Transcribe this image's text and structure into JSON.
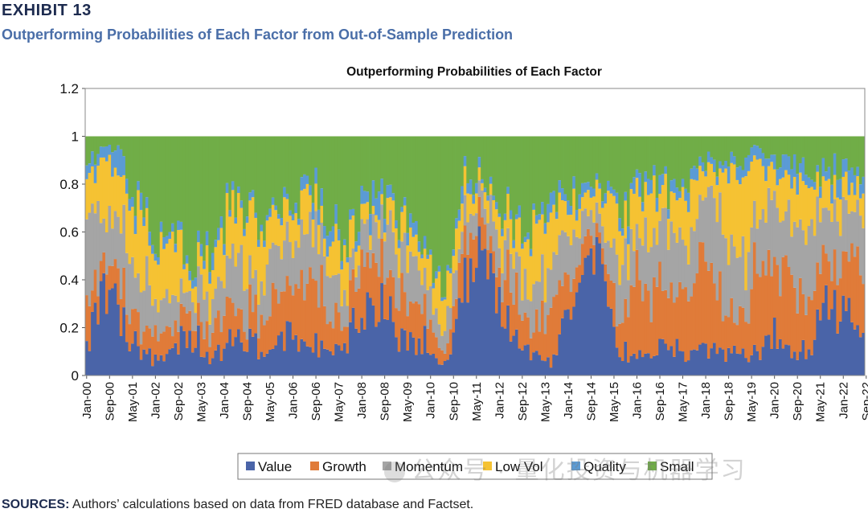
{
  "exhibit_label": "EXHIBIT 13",
  "subtitle": "Outperforming Probabilities of Each Factor from Out-of-Sample Prediction",
  "sources_label": "SOURCES:",
  "sources_text": "Authors’ calculations based on data from FRED database and Factset.",
  "watermark": "公众号 · 量化投资与机器学习",
  "chart_data": {
    "type": "stacked_bar",
    "title": "Outperforming Probabilities of Each Factor",
    "ylim": [
      0,
      1.2
    ],
    "yticks": [
      "0",
      "0.2",
      "0.4",
      "0.6",
      "0.8",
      "1",
      "1.2"
    ],
    "ytick_values": [
      0,
      0.2,
      0.4,
      0.6,
      0.8,
      1.0,
      1.2
    ],
    "xtick_labels": [
      "Jan-00",
      "Sep-00",
      "May-01",
      "Jan-02",
      "Sep-02",
      "May-03",
      "Jan-04",
      "Sep-04",
      "May-05",
      "Jan-06",
      "Sep-06",
      "May-07",
      "Jan-08",
      "Sep-08",
      "May-09",
      "Jan-10",
      "Sep-10",
      "May-11",
      "Jan-12",
      "Sep-12",
      "May-13",
      "Jan-14",
      "Sep-14",
      "May-15",
      "Jan-16",
      "Sep-16",
      "May-17",
      "Jan-18",
      "Sep-18",
      "May-19",
      "Jan-20",
      "Sep-20",
      "May-21",
      "Jan-22",
      "Sep-22"
    ],
    "legend_position": "bottom",
    "colors": {
      "Value": "#4a64a8",
      "Growth": "#e07b39",
      "Momentum": "#a5a5a5",
      "Low Vol": "#f5c233",
      "Quality": "#5b9bd5",
      "Small": "#70ad47"
    },
    "series_names": [
      "Value",
      "Growth",
      "Momentum",
      "Low Vol",
      "Quality",
      "Small"
    ],
    "anchor_months": [
      0,
      6,
      12,
      18,
      24,
      30,
      36,
      42,
      48,
      54,
      60,
      66,
      72,
      78,
      84,
      90,
      96,
      102,
      108,
      114,
      120,
      126,
      132,
      138,
      144,
      150,
      156,
      162,
      168,
      174,
      180,
      186,
      192,
      198,
      204,
      210,
      216,
      222,
      228,
      234,
      240,
      246,
      252,
      258,
      264,
      271
    ],
    "series": [
      {
        "name": "Value",
        "values": [
          0.12,
          0.4,
          0.25,
          0.1,
          0.08,
          0.12,
          0.15,
          0.08,
          0.1,
          0.18,
          0.12,
          0.1,
          0.22,
          0.15,
          0.08,
          0.12,
          0.25,
          0.3,
          0.18,
          0.15,
          0.08,
          0.05,
          0.45,
          0.55,
          0.3,
          0.15,
          0.08,
          0.05,
          0.3,
          0.45,
          0.55,
          0.1,
          0.05,
          0.1,
          0.12,
          0.08,
          0.12,
          0.1,
          0.08,
          0.1,
          0.2,
          0.08,
          0.1,
          0.35,
          0.25,
          0.22
        ]
      },
      {
        "name": "Growth",
        "values": [
          0.15,
          0.1,
          0.15,
          0.1,
          0.12,
          0.08,
          0.12,
          0.1,
          0.15,
          0.1,
          0.12,
          0.2,
          0.15,
          0.3,
          0.2,
          0.08,
          0.2,
          0.2,
          0.15,
          0.2,
          0.1,
          0.05,
          0.15,
          0.1,
          0.15,
          0.2,
          0.1,
          0.25,
          0.15,
          0.1,
          0.05,
          0.15,
          0.35,
          0.25,
          0.2,
          0.3,
          0.4,
          0.2,
          0.15,
          0.35,
          0.3,
          0.3,
          0.2,
          0.15,
          0.25,
          0.3
        ]
      },
      {
        "name": "Momentum",
        "values": [
          0.4,
          0.2,
          0.25,
          0.2,
          0.15,
          0.12,
          0.1,
          0.15,
          0.18,
          0.2,
          0.15,
          0.25,
          0.15,
          0.2,
          0.25,
          0.1,
          0.1,
          0.15,
          0.2,
          0.15,
          0.1,
          0.1,
          0.1,
          0.1,
          0.15,
          0.15,
          0.15,
          0.2,
          0.15,
          0.1,
          0.1,
          0.2,
          0.2,
          0.25,
          0.25,
          0.2,
          0.25,
          0.35,
          0.2,
          0.2,
          0.25,
          0.2,
          0.3,
          0.2,
          0.2,
          0.15
        ]
      },
      {
        "name": "Low Vol",
        "values": [
          0.18,
          0.2,
          0.2,
          0.25,
          0.2,
          0.25,
          0.05,
          0.15,
          0.2,
          0.2,
          0.25,
          0.12,
          0.15,
          0.1,
          0.1,
          0.2,
          0.05,
          0.05,
          0.1,
          0.1,
          0.1,
          0.15,
          0.1,
          0.05,
          0.1,
          0.15,
          0.25,
          0.2,
          0.1,
          0.1,
          0.1,
          0.2,
          0.15,
          0.2,
          0.15,
          0.2,
          0.1,
          0.2,
          0.4,
          0.25,
          0.1,
          0.2,
          0.2,
          0.1,
          0.1,
          0.1
        ]
      },
      {
        "name": "Quality",
        "values": [
          0.05,
          0.05,
          0.1,
          0.05,
          0.05,
          0.03,
          0.03,
          0.05,
          0.05,
          0.02,
          0.03,
          0.03,
          0.03,
          0.05,
          0.07,
          0.03,
          0.05,
          0.1,
          0.03,
          0.05,
          0.02,
          0.02,
          0.05,
          0.03,
          0.02,
          0.03,
          0.02,
          0.05,
          0.03,
          0.05,
          0.02,
          0.05,
          0.05,
          0.05,
          0.05,
          0.05,
          0.03,
          0.05,
          0.05,
          0.05,
          0.05,
          0.1,
          0.05,
          0.05,
          0.1,
          0.05
        ]
      },
      {
        "name": "Small",
        "values": [
          0.1,
          0.05,
          0.05,
          0.3,
          0.4,
          0.4,
          0.55,
          0.47,
          0.32,
          0.3,
          0.33,
          0.3,
          0.3,
          0.2,
          0.3,
          0.47,
          0.35,
          0.2,
          0.34,
          0.35,
          0.6,
          0.63,
          0.15,
          0.17,
          0.28,
          0.32,
          0.4,
          0.25,
          0.27,
          0.2,
          0.18,
          0.3,
          0.2,
          0.15,
          0.23,
          0.17,
          0.1,
          0.1,
          0.12,
          0.05,
          0.1,
          0.12,
          0.15,
          0.15,
          0.1,
          0.18
        ]
      }
    ],
    "n_bars": 272
  }
}
